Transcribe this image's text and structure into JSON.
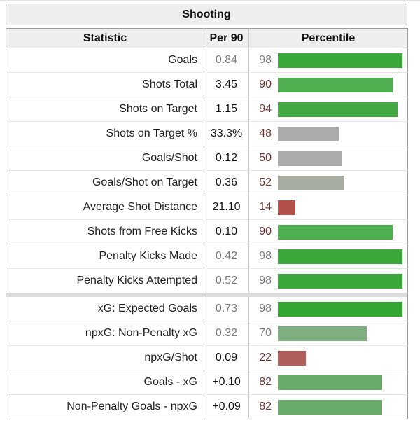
{
  "title": "Shooting",
  "columns": [
    "Statistic",
    "Per 90",
    "Percentile"
  ],
  "colors": {
    "header_bg": "#eeeeee",
    "outer_border": "#9a9a9a",
    "row_separator": "#e6e6e6",
    "percentile_text": "#6f3533",
    "muted_text": "#7a7a7a",
    "green_high": "#3aa83a",
    "green_mid": "#68ab68",
    "gray_bar": "#ababab",
    "red_low": "#b4504a"
  },
  "chart_data": {
    "type": "table",
    "title": "Shooting",
    "columns": [
      "Statistic",
      "Per 90",
      "Percentile"
    ],
    "bar_scale_max": 100,
    "section_break_after_index": 9,
    "rows": [
      {
        "label": "Goals",
        "per90": "0.84",
        "percentile": 98,
        "muted": true,
        "bar_color": "#3aa83a"
      },
      {
        "label": "Shots Total",
        "per90": "3.45",
        "percentile": 90,
        "muted": false,
        "bar_color": "#4fae4f"
      },
      {
        "label": "Shots on Target",
        "per90": "1.15",
        "percentile": 94,
        "muted": false,
        "bar_color": "#43a943"
      },
      {
        "label": "Shots on Target %",
        "per90": "33.3%",
        "percentile": 48,
        "muted": false,
        "bar_color": "#ababab"
      },
      {
        "label": "Goals/Shot",
        "per90": "0.12",
        "percentile": 50,
        "muted": false,
        "bar_color": "#ababab"
      },
      {
        "label": "Goals/Shot on Target",
        "per90": "0.36",
        "percentile": 52,
        "muted": false,
        "bar_color": "#a7ada1"
      },
      {
        "label": "Average Shot Distance",
        "per90": "21.10",
        "percentile": 14,
        "muted": false,
        "bar_color": "#b4504a"
      },
      {
        "label": "Shots from Free Kicks",
        "per90": "0.10",
        "percentile": 90,
        "muted": false,
        "bar_color": "#4fae4f"
      },
      {
        "label": "Penalty Kicks Made",
        "per90": "0.42",
        "percentile": 98,
        "muted": true,
        "bar_color": "#3aa83a"
      },
      {
        "label": "Penalty Kicks Attempted",
        "per90": "0.52",
        "percentile": 98,
        "muted": true,
        "bar_color": "#3aa83a"
      },
      {
        "label": "xG: Expected Goals",
        "per90": "0.73",
        "percentile": 98,
        "muted": true,
        "bar_color": "#33a633"
      },
      {
        "label": "npxG: Non-Penalty xG",
        "per90": "0.32",
        "percentile": 70,
        "muted": true,
        "bar_color": "#7fae7f"
      },
      {
        "label": "npxG/Shot",
        "per90": "0.09",
        "percentile": 22,
        "muted": false,
        "bar_color": "#b05f5c"
      },
      {
        "label": "Goals - xG",
        "per90": "+0.10",
        "percentile": 82,
        "muted": false,
        "bar_color": "#68ab68"
      },
      {
        "label": "Non-Penalty Goals - npxG",
        "per90": "+0.09",
        "percentile": 82,
        "muted": false,
        "bar_color": "#68ab68"
      }
    ]
  }
}
